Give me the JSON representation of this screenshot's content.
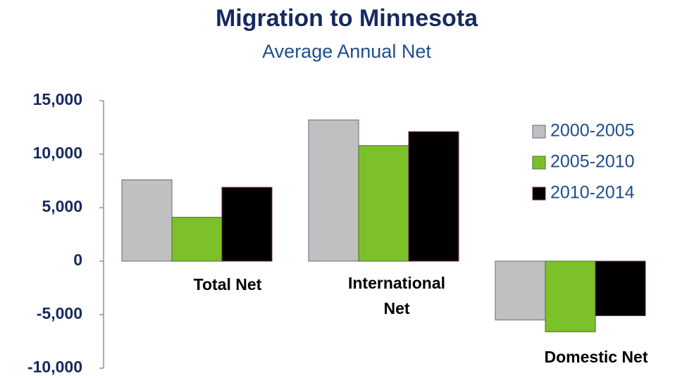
{
  "chart_data": {
    "type": "bar",
    "title": "Migration to Minnesota",
    "subtitle": "Average Annual Net",
    "categories": [
      "Total Net",
      "International Net",
      "Domestic Net"
    ],
    "series": [
      {
        "name": "2000-2005",
        "color": "#c0c0c0",
        "values": [
          7600,
          13200,
          -5500
        ]
      },
      {
        "name": "2005-2010",
        "color": "#7dc12a",
        "values": [
          4100,
          10800,
          -6600
        ]
      },
      {
        "name": "2010-2014",
        "color": "#000000",
        "values": [
          6900,
          12100,
          -5100
        ]
      }
    ],
    "ylim": [
      -10000,
      15000
    ],
    "yticks": [
      {
        "value": -10000,
        "label": "-10,000"
      },
      {
        "value": -5000,
        "label": "-5,000"
      },
      0,
      {
        "value": 5000,
        "label": "5,000"
      },
      {
        "value": 10000,
        "label": "10,000"
      },
      {
        "value": 15000,
        "label": "15,000"
      }
    ],
    "legend": "right"
  }
}
